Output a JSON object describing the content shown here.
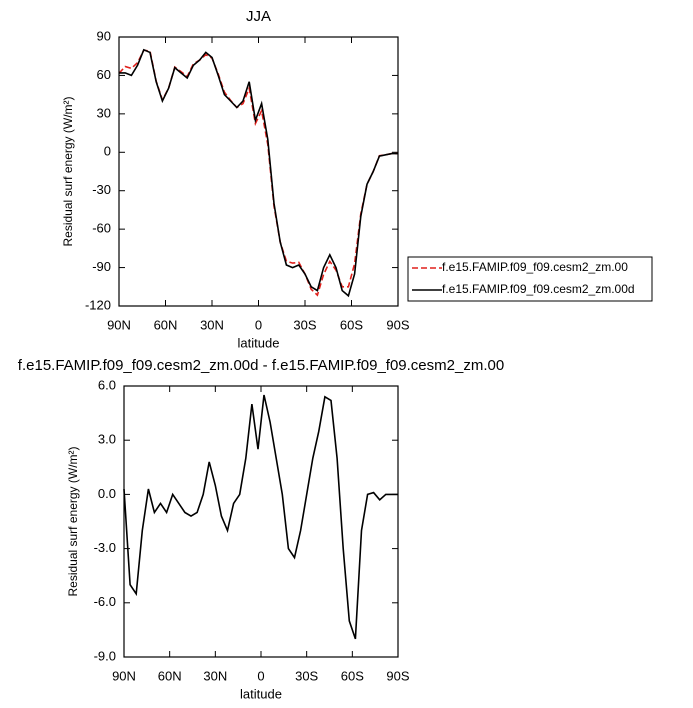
{
  "chart_data": [
    {
      "type": "line",
      "title": "JJA",
      "x_label": "latitude",
      "y_label": "Residual surf energy (W/m²)",
      "x": [
        90,
        86,
        82,
        78,
        74,
        70,
        66,
        62,
        58,
        54,
        50,
        46,
        42,
        38,
        34,
        30,
        26,
        22,
        18,
        14,
        10,
        6,
        2,
        -2,
        -6,
        -10,
        -14,
        -18,
        -22,
        -26,
        -30,
        -34,
        -38,
        -42,
        -46,
        -50,
        -54,
        -58,
        -62,
        -66,
        -70,
        -74,
        -78,
        -82,
        -86,
        -90
      ],
      "xlim": [
        90,
        -90
      ],
      "xticks": [
        {
          "value": 90,
          "label": "90N"
        },
        {
          "value": 60,
          "label": "60N"
        },
        {
          "value": 30,
          "label": "30N"
        },
        0,
        {
          "value": -30,
          "label": "30S"
        },
        {
          "value": -60,
          "label": "60S"
        },
        {
          "value": -90,
          "label": "90S"
        }
      ],
      "ylim": [
        -120,
        90
      ],
      "yticks": [
        -120,
        -90,
        -60,
        -30,
        0,
        30,
        60,
        90
      ],
      "legend": "right",
      "series": [
        {
          "name": "f.e15.FAMIP.f09_f09.cesm2_zm.00",
          "color": "#e0201b",
          "line_style": "dashed",
          "values": [
            61.7,
            67,
            65.5,
            70,
            79.7,
            79,
            55.5,
            41,
            50,
            66.5,
            63,
            59.2,
            69,
            72,
            76.2,
            73.5,
            61.2,
            47,
            40.5,
            35,
            38,
            50,
            22.5,
            32.5,
            6,
            -42,
            -70,
            -85,
            -86.5,
            -86,
            -95,
            -107,
            -111.5,
            -95.4,
            -85.2,
            -92,
            -105,
            -105,
            -87,
            -48,
            -25,
            -15.1,
            -2.7,
            -2,
            -1,
            -1
          ]
        },
        {
          "name": "f.e15.FAMIP.f09_f09.cesm2_zm.00d",
          "color": "#000000",
          "line_style": "solid",
          "values": [
            62,
            62,
            60,
            68,
            80,
            78,
            55,
            40,
            50,
            66,
            62,
            58,
            68,
            72,
            78,
            74,
            60,
            45,
            40,
            35,
            40,
            55,
            25,
            38,
            10,
            -40,
            -70,
            -88,
            -90,
            -88,
            -95,
            -105,
            -108,
            -90,
            -80,
            -90,
            -108,
            -112,
            -95,
            -50,
            -25,
            -15,
            -3,
            -2,
            -1,
            -1
          ]
        }
      ]
    },
    {
      "type": "line",
      "title": "f.e15.FAMIP.f09_f09.cesm2_zm.00d - f.e15.FAMIP.f09_f09.cesm2_zm.00",
      "x_label": "latitude",
      "y_label": "Residual surf energy (W/m²)",
      "x": [
        90,
        86,
        82,
        78,
        74,
        70,
        66,
        62,
        58,
        54,
        50,
        46,
        42,
        38,
        34,
        30,
        26,
        22,
        18,
        14,
        10,
        6,
        2,
        -2,
        -6,
        -10,
        -14,
        -18,
        -22,
        -26,
        -30,
        -34,
        -38,
        -42,
        -46,
        -50,
        -54,
        -58,
        -62,
        -66,
        -70,
        -74,
        -78,
        -82,
        -86,
        -90
      ],
      "xlim": [
        90,
        -90
      ],
      "xticks": [
        {
          "value": 90,
          "label": "90N"
        },
        {
          "value": 60,
          "label": "60N"
        },
        {
          "value": 30,
          "label": "30N"
        },
        0,
        {
          "value": -30,
          "label": "30S"
        },
        {
          "value": -60,
          "label": "60S"
        },
        {
          "value": -90,
          "label": "90S"
        }
      ],
      "ylim": [
        -9,
        6
      ],
      "yticks": [
        {
          "value": -9,
          "label": "-9.0"
        },
        {
          "value": -6,
          "label": "-6.0"
        },
        {
          "value": -3,
          "label": "-3.0"
        },
        {
          "value": 0,
          "label": "0.0"
        },
        {
          "value": 3,
          "label": "3.0"
        },
        {
          "value": 6,
          "label": "6.0"
        }
      ],
      "color": "#000000",
      "values": [
        0.3,
        -5,
        -5.5,
        -2,
        0.3,
        -1,
        -0.5,
        -1,
        0,
        -0.5,
        -1,
        -1.2,
        -1,
        0,
        1.8,
        0.5,
        -1.2,
        -2,
        -0.5,
        0,
        2,
        5,
        2.5,
        5.5,
        4,
        2,
        0,
        -3,
        -3.5,
        -2,
        0,
        2,
        3.5,
        5.4,
        5.2,
        2,
        -3,
        -7,
        -8,
        -2,
        0,
        0.1,
        -0.3,
        0,
        0,
        0
      ]
    }
  ]
}
